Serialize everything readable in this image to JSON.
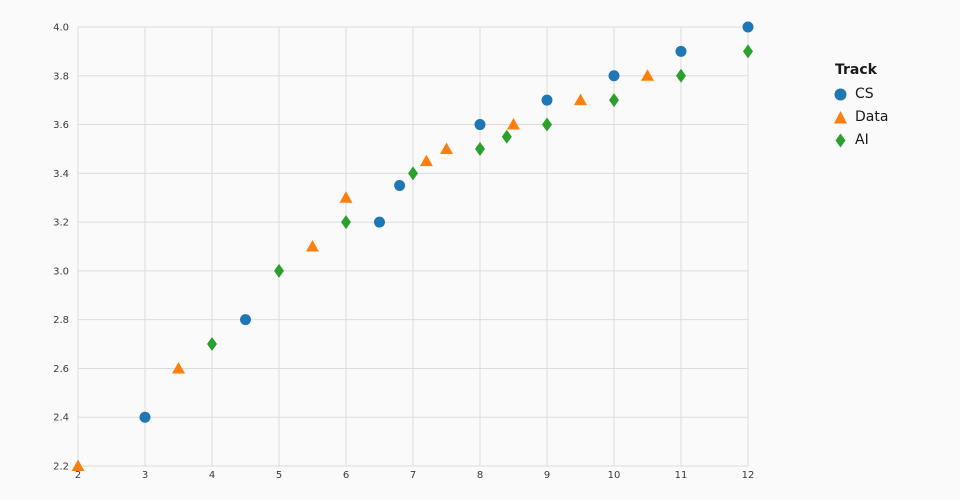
{
  "figure": {
    "background": "#fafafa",
    "grid_color": "#dcdcdc",
    "tick_label_color": "#3a3a3a"
  },
  "chart_data": {
    "type": "scatter",
    "title": "",
    "xlabel": "",
    "ylabel": "",
    "xlim": [
      2,
      12
    ],
    "ylim": [
      2.2,
      4.0
    ],
    "x_ticks": [
      2,
      3,
      4,
      5,
      6,
      7,
      8,
      9,
      10,
      11,
      12
    ],
    "y_ticks": [
      2.2,
      2.4,
      2.6,
      2.8,
      3.0,
      3.2,
      3.4,
      3.6,
      3.8,
      4.0
    ],
    "grid": true,
    "legend_position": "right",
    "legend_title": "Track",
    "series": [
      {
        "name": "CS",
        "marker": "circle",
        "color": "#1f77b4",
        "points": [
          [
            3,
            2.4
          ],
          [
            4.5,
            2.8
          ],
          [
            6.5,
            3.2
          ],
          [
            6.8,
            3.35
          ],
          [
            8,
            3.6
          ],
          [
            9,
            3.7
          ],
          [
            10,
            3.8
          ],
          [
            11,
            3.9
          ],
          [
            12,
            4.0
          ]
        ]
      },
      {
        "name": "Data",
        "marker": "triangle",
        "color": "#ff7f0e",
        "points": [
          [
            2,
            2.2
          ],
          [
            3.5,
            2.6
          ],
          [
            5.5,
            3.1
          ],
          [
            6,
            3.3
          ],
          [
            7.2,
            3.45
          ],
          [
            7.5,
            3.5
          ],
          [
            8.5,
            3.6
          ],
          [
            9.5,
            3.7
          ],
          [
            10.5,
            3.8
          ]
        ]
      },
      {
        "name": "AI",
        "marker": "diamond",
        "color": "#2ca02c",
        "points": [
          [
            4,
            2.7
          ],
          [
            5,
            3.0
          ],
          [
            6,
            3.2
          ],
          [
            7,
            3.4
          ],
          [
            8,
            3.5
          ],
          [
            8.4,
            3.55
          ],
          [
            9,
            3.6
          ],
          [
            10,
            3.7
          ],
          [
            11,
            3.8
          ],
          [
            12,
            3.9
          ]
        ]
      }
    ]
  }
}
